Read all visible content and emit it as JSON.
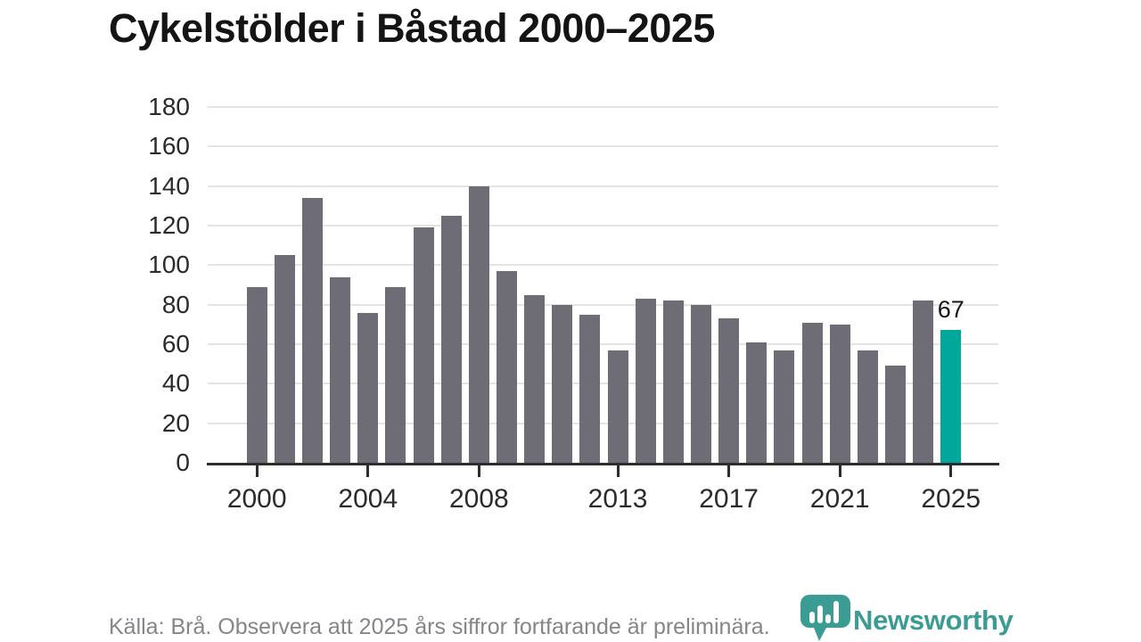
{
  "title": "Cykelstölder i Båstad 2000–2025",
  "chart_data": {
    "type": "bar",
    "title": "Cykelstölder i Båstad 2000–2025",
    "categories": [
      2000,
      2001,
      2002,
      2003,
      2004,
      2005,
      2006,
      2007,
      2008,
      2009,
      2010,
      2011,
      2012,
      2013,
      2014,
      2015,
      2016,
      2017,
      2018,
      2019,
      2020,
      2021,
      2022,
      2023,
      2024,
      2025
    ],
    "values": [
      89,
      105,
      134,
      94,
      76,
      89,
      119,
      125,
      140,
      97,
      85,
      80,
      75,
      57,
      83,
      82,
      80,
      73,
      61,
      57,
      71,
      70,
      57,
      49,
      82,
      67
    ],
    "ylim": [
      0,
      180
    ],
    "ytick_step": 20,
    "xticks": [
      2000,
      2004,
      2008,
      2013,
      2017,
      2021,
      2025
    ],
    "grid": "horizontal",
    "legend": "none",
    "bar_color": "#6e6d75",
    "highlight_year": 2025,
    "highlight_color": "#00a79a",
    "highlight_value_label": "67"
  },
  "footer": {
    "source_note": "Källa: Brå. Observera att 2025 års siffror fortfarande är preliminära.",
    "logo_text": "Newsworthy",
    "logo_color": "#3b9c94"
  }
}
